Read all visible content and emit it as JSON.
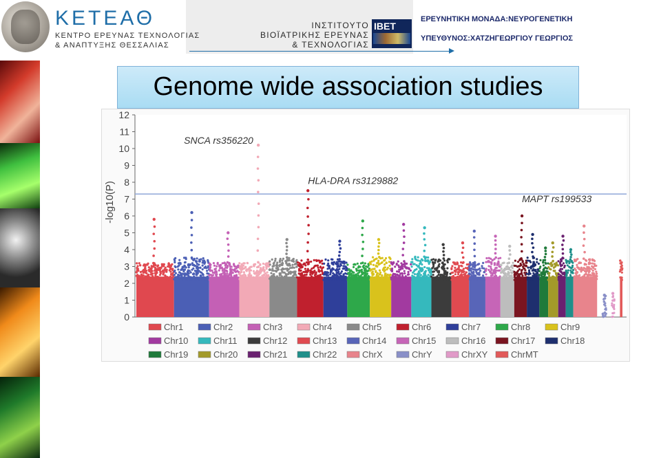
{
  "header": {
    "left_title": "ΚΕΤΕΑΘ",
    "left_sub1": "ΚΕΝΤΡΟ ΕΡΕΥΝΑΣ ΤΕΧΝΟΛΟΓΙΑΣ",
    "left_sub2": "& ΑΝΑΠΤΥΞΗΣ ΘΕΣΣΑΛΙΑΣ",
    "inst_line1": "ΙΝΣΤΙΤΟΥΤΟ",
    "inst_line2": "ΒΙΟΪΑΤΡΙΚΗΣ ΕΡΕΥΝΑΣ",
    "inst_line3": "& ΤΕΧΝΟΛΟΓΙΑΣ",
    "ibet_logo": "IBET",
    "unit_line1": "ΕΡΕΥΝΗΤΙΚΗ ΜΟΝΑΔΑ:ΝΕΥΡΟΓΕΝΕΤΙΚΗ",
    "unit_line2": "ΥΠΕΥΘΥΝΟΣ:ΧΑΤΖΗΓΕΩΡΓΙΟΥ ΓΕΩΡΓΙΟΣ"
  },
  "slide": {
    "title": "Genome wide association studies"
  },
  "colors": {
    "title_bg": "#b7e2f6",
    "threshold": "#8fa6d8",
    "header_blue": "#1f6ea8"
  },
  "chart_data": {
    "type": "scatter",
    "subtype": "manhattan",
    "ylabel": "-log10(P)",
    "ylim": [
      0,
      12
    ],
    "yticks": [
      0,
      1,
      2,
      3,
      4,
      5,
      6,
      7,
      8,
      9,
      10,
      11,
      12
    ],
    "threshold": 7.3,
    "annotations": [
      {
        "label": "SNCA rs356220",
        "chromosome": "Chr4",
        "value": 10.2
      },
      {
        "label": "HLA-DRA rs3129882",
        "chromosome": "Chr6",
        "value": 7.5
      },
      {
        "label": "MAPT rs199533",
        "chromosome": "Chr17",
        "value": 6.0
      }
    ],
    "series": [
      {
        "name": "Chr1",
        "color": "#e0484f",
        "peak": 5.8
      },
      {
        "name": "Chr2",
        "color": "#4b5fb5",
        "peak": 6.2
      },
      {
        "name": "Chr3",
        "color": "#c460b5",
        "peak": 5.0
      },
      {
        "name": "Chr4",
        "color": "#f2a9b6",
        "peak": 10.2
      },
      {
        "name": "Chr5",
        "color": "#8a8a8a",
        "peak": 4.6
      },
      {
        "name": "Chr6",
        "color": "#c0202e",
        "peak": 7.5
      },
      {
        "name": "Chr7",
        "color": "#2f3f9a",
        "peak": 4.5
      },
      {
        "name": "Chr8",
        "color": "#2ea84a",
        "peak": 5.7
      },
      {
        "name": "Chr9",
        "color": "#d9c21c",
        "peak": 4.6
      },
      {
        "name": "Chr10",
        "color": "#a23aa0",
        "peak": 5.5
      },
      {
        "name": "Chr11",
        "color": "#35b9bd",
        "peak": 5.3
      },
      {
        "name": "Chr12",
        "color": "#3c3c3c",
        "peak": 4.3
      },
      {
        "name": "Chr13",
        "color": "#e04a50",
        "peak": 4.4
      },
      {
        "name": "Chr14",
        "color": "#5865b8",
        "peak": 5.1
      },
      {
        "name": "Chr15",
        "color": "#c665b7",
        "peak": 4.8
      },
      {
        "name": "Chr16",
        "color": "#bdbdbd",
        "peak": 4.2
      },
      {
        "name": "Chr17",
        "color": "#7a1520",
        "peak": 6.0
      },
      {
        "name": "Chr18",
        "color": "#1e2f6e",
        "peak": 4.9
      },
      {
        "name": "Chr19",
        "color": "#1f7a3a",
        "peak": 4.1
      },
      {
        "name": "Chr20",
        "color": "#a39a2a",
        "peak": 4.4
      },
      {
        "name": "Chr21",
        "color": "#6a2170",
        "peak": 4.8
      },
      {
        "name": "Chr22",
        "color": "#1f8f8a",
        "peak": 4.0
      },
      {
        "name": "ChrX",
        "color": "#e8848c",
        "peak": 5.4
      },
      {
        "name": "ChrY",
        "color": "#8a90c8",
        "peak": 1.3
      },
      {
        "name": "ChrXY",
        "color": "#e19ac8",
        "peak": 1.4
      },
      {
        "name": "ChrMT",
        "color": "#e25a5a",
        "peak": 2.8
      }
    ],
    "legend": [
      "Chr1",
      "Chr2",
      "Chr3",
      "Chr4",
      "Chr5",
      "Chr6",
      "Chr7",
      "Chr8",
      "Chr9",
      "Chr10",
      "Chr11",
      "Chr12",
      "Chr13",
      "Chr14",
      "Chr15",
      "Chr16",
      "Chr17",
      "Chr18",
      "Chr19",
      "Chr20",
      "Chr21",
      "Chr22",
      "ChrX",
      "ChrY",
      "ChrXY",
      "ChrMT"
    ],
    "legend_position": "bottom"
  }
}
